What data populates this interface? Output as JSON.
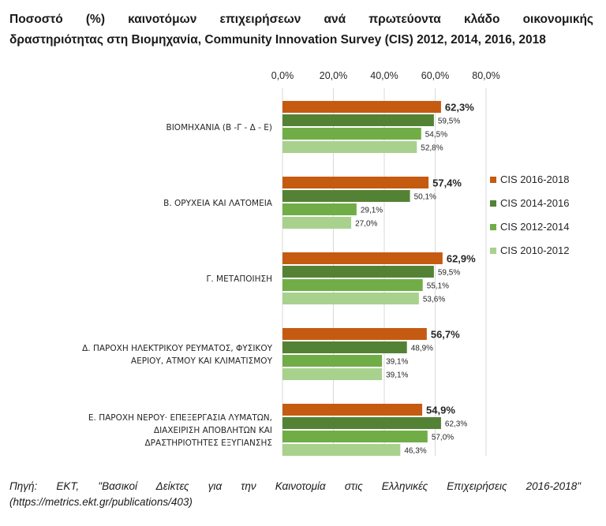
{
  "title_line1": "Ποσοστό (%) καινοτόμων επιχειρήσεων ανά πρωτεύοντα κλάδο οικονομικής",
  "title_line2": "δραστηριότητας στη Βιομηχανία, Community Innovation Survey (CIS) 2012, 2014, 2016, 2018",
  "source_line1": "Πηγή: ΕΚΤ, \"Βασικοί Δείκτες για την Καινοτομία στις Ελληνικές Επιχειρήσεις 2016-2018\"",
  "source_line2": "(https://metrics.ekt.gr/publications/403)",
  "chart_data": {
    "type": "bar",
    "orientation": "horizontal",
    "xlim": [
      0,
      80
    ],
    "ticks": [
      "0,0%",
      "20,0%",
      "40,0%",
      "60,0%",
      "80,0%"
    ],
    "tick_values": [
      0,
      20,
      40,
      60,
      80
    ],
    "grid": true,
    "legend_position": "right",
    "categories": [
      [
        "ΒΙΟΜΗΧΑΝΙΑ (Β -Γ - Δ - Ε)"
      ],
      [
        "Β. ΟΡΥΧΕΙΑ ΚΑΙ ΛΑΤΟΜΕΙΑ"
      ],
      [
        "Γ. ΜΕΤΑΠΟΙΗΣΗ"
      ],
      [
        "Δ. ΠΑΡΟΧΗ ΗΛΕΚΤΡΙΚΟΥ ΡΕΥΜΑΤΟΣ, ΦΥΣΙΚΟΥ",
        "ΑΕΡΙΟΥ, ΑΤΜΟΥ ΚΑΙ ΚΛΙΜΑΤΙΣΜΟΥ"
      ],
      [
        "Ε. ΠΑΡΟΧΗ ΝΕΡΟΥ· ΕΠΕΞΕΡΓΑΣΙΑ ΛΥΜΑΤΩΝ,",
        "ΔΙΑΧΕΙΡΙΣΗ ΑΠΟΒΛΗΤΩΝ ΚΑΙ",
        "ΔΡΑΣΤΗΡΙΟΤΗΤΕΣ ΕΞΥΓΙΑΝΣΗΣ"
      ]
    ],
    "series": [
      {
        "name": "CIS 2016-2018",
        "color": "#c55a11",
        "values": [
          62.3,
          57.4,
          62.9,
          56.7,
          54.9
        ],
        "labels": [
          "62,3%",
          "57,4%",
          "62,9%",
          "56,7%",
          "54,9%"
        ],
        "label_bold": true
      },
      {
        "name": "CIS 2014-2016",
        "color": "#548235",
        "values": [
          59.5,
          50.1,
          59.5,
          48.9,
          62.3
        ],
        "labels": [
          "59,5%",
          "50,1%",
          "59,5%",
          "48,9%",
          "62,3%"
        ],
        "label_bold": false
      },
      {
        "name": "CIS 2012-2014",
        "color": "#70ad47",
        "values": [
          54.5,
          29.1,
          55.1,
          39.1,
          57.0
        ],
        "labels": [
          "54,5%",
          "29,1%",
          "55,1%",
          "39,1%",
          "57,0%"
        ],
        "label_bold": false
      },
      {
        "name": "CIS 2010-2012",
        "color": "#a9d18e",
        "values": [
          52.8,
          27.0,
          53.6,
          39.1,
          46.3
        ],
        "labels": [
          "52,8%",
          "27,0%",
          "53,6%",
          "39,1%",
          "46,3%"
        ],
        "label_bold": false
      }
    ]
  }
}
